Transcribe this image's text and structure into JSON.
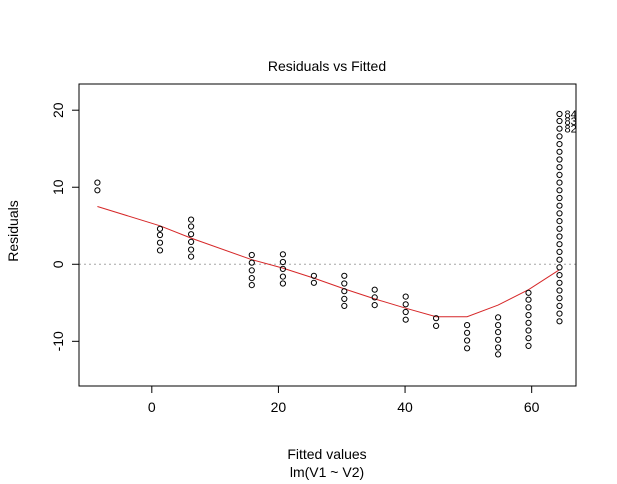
{
  "chart_data": {
    "type": "scatter",
    "title": "Residuals vs Fitted",
    "xlabel": "Fitted values",
    "sublabel": "lm(V1 ~ V2)",
    "ylabel": "Residuals",
    "xlim": [
      -11.5,
      67
    ],
    "ylim": [
      -15.8,
      23.4
    ],
    "x_ticks": [
      0,
      20,
      40,
      60
    ],
    "y_ticks": [
      -10,
      0,
      10,
      20
    ],
    "zero_line": 0,
    "colors": {
      "points": "#000000",
      "smooth": "#d62728",
      "zero_line": "#a6a6a6",
      "axes": "#000000"
    },
    "points": [
      [
        -8.6,
        10.6
      ],
      [
        -8.6,
        9.6
      ],
      [
        1.3,
        4.6
      ],
      [
        1.3,
        3.8
      ],
      [
        1.3,
        2.8
      ],
      [
        1.3,
        1.8
      ],
      [
        6.2,
        5.8
      ],
      [
        6.2,
        4.9
      ],
      [
        6.2,
        3.9
      ],
      [
        6.2,
        2.9
      ],
      [
        6.2,
        1.9
      ],
      [
        6.2,
        1.0
      ],
      [
        15.8,
        1.2
      ],
      [
        15.8,
        0.2
      ],
      [
        15.8,
        -0.8
      ],
      [
        15.8,
        -1.8
      ],
      [
        15.8,
        -2.7
      ],
      [
        20.7,
        1.3
      ],
      [
        20.7,
        0.3
      ],
      [
        20.7,
        -0.6
      ],
      [
        20.7,
        -1.6
      ],
      [
        20.7,
        -2.5
      ],
      [
        25.6,
        -1.5
      ],
      [
        25.6,
        -2.4
      ],
      [
        30.4,
        -1.5
      ],
      [
        30.4,
        -2.5
      ],
      [
        30.4,
        -3.5
      ],
      [
        30.4,
        -4.5
      ],
      [
        30.4,
        -5.4
      ],
      [
        35.2,
        -3.3
      ],
      [
        35.2,
        -4.3
      ],
      [
        35.2,
        -5.3
      ],
      [
        40.1,
        -4.2
      ],
      [
        40.1,
        -5.2
      ],
      [
        40.1,
        -6.2
      ],
      [
        40.1,
        -7.2
      ],
      [
        44.9,
        -7.0
      ],
      [
        44.9,
        -8.0
      ],
      [
        49.8,
        -7.9
      ],
      [
        49.8,
        -8.9
      ],
      [
        49.8,
        -9.9
      ],
      [
        49.8,
        -10.9
      ],
      [
        54.7,
        -6.9
      ],
      [
        54.7,
        -7.9
      ],
      [
        54.7,
        -8.8
      ],
      [
        54.7,
        -9.8
      ],
      [
        54.7,
        -10.8
      ],
      [
        54.7,
        -11.7
      ],
      [
        59.5,
        -3.7
      ],
      [
        59.5,
        -4.6
      ],
      [
        59.5,
        -5.6
      ],
      [
        59.5,
        -6.6
      ],
      [
        59.5,
        -7.6
      ],
      [
        59.5,
        -8.6
      ],
      [
        59.5,
        -9.6
      ],
      [
        59.5,
        -10.6
      ],
      [
        64.4,
        19.5
      ],
      [
        64.4,
        18.6
      ],
      [
        64.4,
        17.6
      ],
      [
        64.4,
        16.6
      ],
      [
        64.4,
        15.6
      ],
      [
        64.4,
        14.6
      ],
      [
        64.4,
        13.6
      ],
      [
        64.4,
        12.6
      ],
      [
        64.4,
        11.6
      ],
      [
        64.4,
        10.6
      ],
      [
        64.4,
        9.6
      ],
      [
        64.4,
        8.6
      ],
      [
        64.4,
        7.6
      ],
      [
        64.4,
        6.6
      ],
      [
        64.4,
        5.6
      ],
      [
        64.4,
        4.6
      ],
      [
        64.4,
        3.6
      ],
      [
        64.4,
        2.6
      ],
      [
        64.4,
        1.6
      ],
      [
        64.4,
        0.6
      ],
      [
        64.4,
        -0.4
      ],
      [
        64.4,
        -1.4
      ],
      [
        64.4,
        -2.4
      ],
      [
        64.4,
        -3.4
      ],
      [
        64.4,
        -4.4
      ],
      [
        64.4,
        -5.4
      ],
      [
        64.4,
        -6.4
      ],
      [
        64.4,
        -7.4
      ]
    ],
    "smooth_line": [
      [
        -8.6,
        7.5
      ],
      [
        1.3,
        5.0
      ],
      [
        6.2,
        3.4
      ],
      [
        15.8,
        0.6
      ],
      [
        20.7,
        -0.5
      ],
      [
        25.6,
        -1.8
      ],
      [
        30.4,
        -3.2
      ],
      [
        35.2,
        -4.5
      ],
      [
        40.1,
        -5.7
      ],
      [
        44.9,
        -6.8
      ],
      [
        49.8,
        -6.8
      ],
      [
        54.7,
        -5.3
      ],
      [
        59.5,
        -3.3
      ],
      [
        64.4,
        -0.7
      ]
    ],
    "annotations": [
      {
        "text": "84",
        "x": 64.4,
        "y": 19.5
      },
      {
        "text": "83",
        "x": 64.4,
        "y": 18.6
      },
      {
        "text": "82",
        "x": 64.4,
        "y": 17.6
      }
    ]
  }
}
